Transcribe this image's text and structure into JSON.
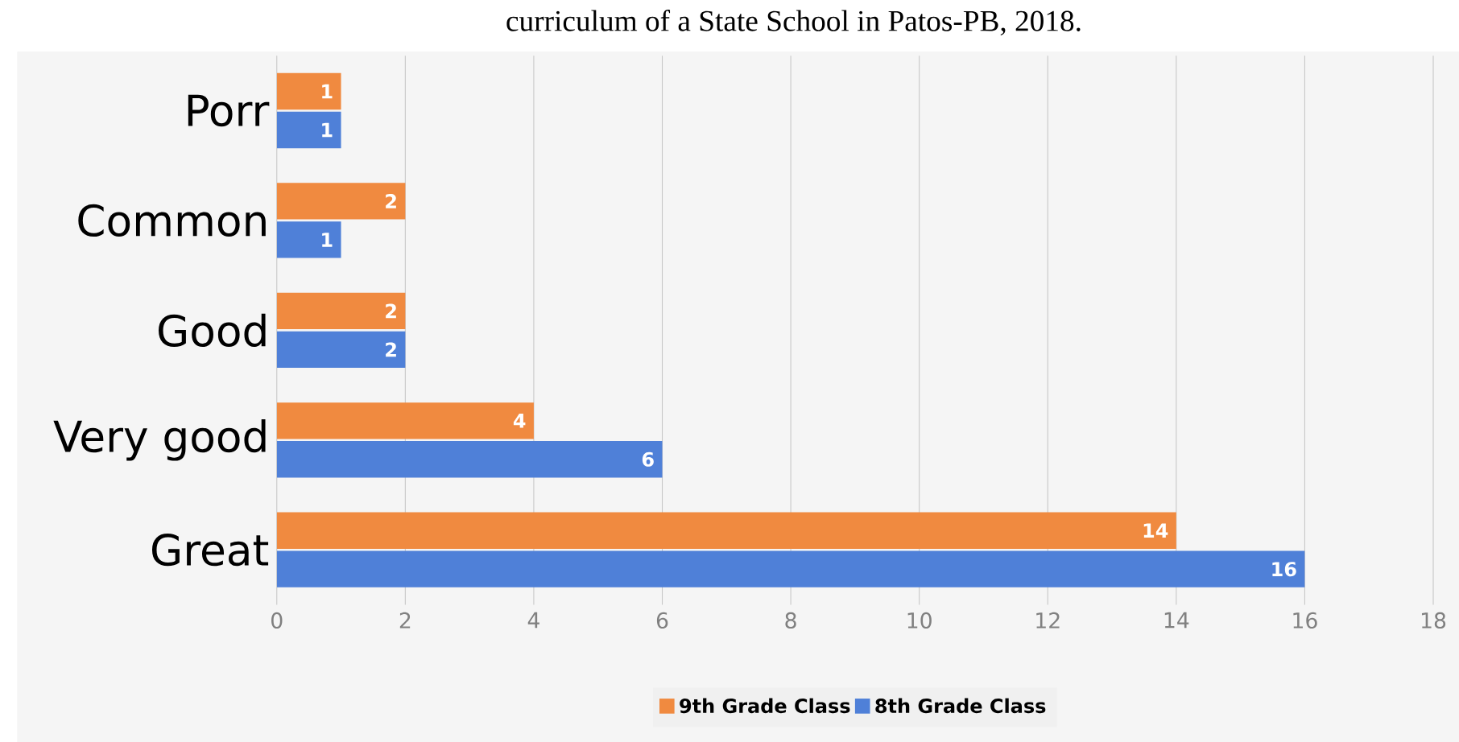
{
  "chart_data": {
    "type": "bar",
    "orientation": "horizontal",
    "title": "curriculum of a State School in Patos-PB, 2018.",
    "categories": [
      "Porr",
      "Common",
      "Good",
      "Very good",
      "Great"
    ],
    "series": [
      {
        "name": "9th Grade Class",
        "color": "#f08a40",
        "values": [
          1,
          2,
          2,
          4,
          14
        ]
      },
      {
        "name": "8th Grade Class",
        "color": "#4f80d8",
        "values": [
          1,
          1,
          2,
          6,
          16
        ]
      }
    ],
    "xlim": [
      0,
      18
    ],
    "xticks": [
      0,
      2,
      4,
      6,
      8,
      10,
      12,
      14,
      16,
      18
    ],
    "grid": "x",
    "legend": "bottom",
    "data_labels": true
  }
}
